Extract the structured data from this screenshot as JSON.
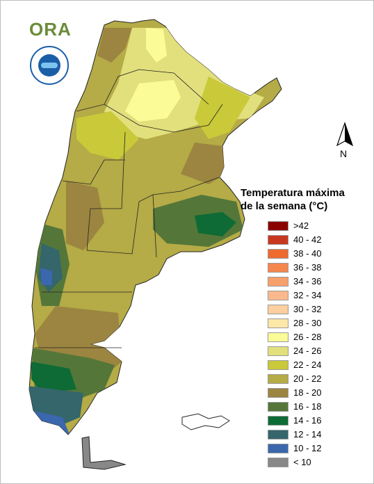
{
  "legend": {
    "title_line1": "Temperatura máxima",
    "title_line2": "de la semana (°C)",
    "items": [
      {
        "label": ">42",
        "color": "#8b0000"
      },
      {
        "label": "40 - 42",
        "color": "#c8381e"
      },
      {
        "label": "38 - 40",
        "color": "#ee6a2f"
      },
      {
        "label": "36 - 38",
        "color": "#f5864e"
      },
      {
        "label": "34 - 36",
        "color": "#f8a06c"
      },
      {
        "label": "32 - 34",
        "color": "#fab98c"
      },
      {
        "label": "30 - 32",
        "color": "#fbcf9e"
      },
      {
        "label": "28 - 30",
        "color": "#fde7a9"
      },
      {
        "label": "26 - 28",
        "color": "#fbfb98"
      },
      {
        "label": "24 - 26",
        "color": "#e2e07c"
      },
      {
        "label": "22 - 24",
        "color": "#c9c93a"
      },
      {
        "label": "20 - 22",
        "color": "#b5ab47"
      },
      {
        "label": "18 - 20",
        "color": "#9c8540"
      },
      {
        "label": "16 - 18",
        "color": "#547739"
      },
      {
        "label": "14 - 16",
        "color": "#0e6b35"
      },
      {
        "label": "12 - 14",
        "color": "#34666b"
      },
      {
        "label": "10 - 12",
        "color": "#3a67ad"
      },
      {
        "label": "< 10",
        "color": "#888888"
      }
    ]
  },
  "compass": {
    "label": "N"
  },
  "logo": {
    "text": "ORA"
  }
}
